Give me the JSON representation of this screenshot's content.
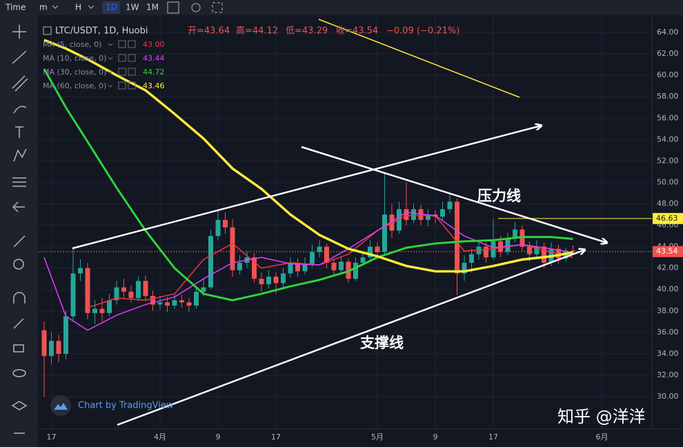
{
  "chart_data": {
    "type": "candlestick",
    "toolbar": [
      "Time",
      "m",
      "H",
      "1D",
      "1W",
      "1M"
    ],
    "symbol": "LTC/USDT, 1D, Huobi",
    "ohlc_text": [
      "开=43.64",
      "高=44.12",
      "低=43.29",
      "收=43.54"
    ],
    "change_text": "−0.09 (−0.21%)",
    "x": [
      "03-16",
      "03-17",
      "03-18",
      "03-19",
      "03-20",
      "03-21",
      "03-22",
      "03-23",
      "03-24",
      "03-25",
      "03-26",
      "03-27",
      "03-28",
      "03-29",
      "03-30",
      "03-31",
      "04-01",
      "04-02",
      "04-03",
      "04-04",
      "04-05",
      "04-06",
      "04-07",
      "04-08",
      "04-09",
      "04-10",
      "04-11",
      "04-12",
      "04-13",
      "04-14",
      "04-15",
      "04-16",
      "04-17",
      "04-18",
      "04-19",
      "04-20",
      "04-21",
      "04-22",
      "04-23",
      "04-24",
      "04-25",
      "04-26",
      "04-27",
      "04-28",
      "04-29",
      "04-30",
      "05-01",
      "05-02",
      "05-03",
      "05-04",
      "05-05",
      "05-06",
      "05-07",
      "05-08",
      "05-09",
      "05-10",
      "05-11",
      "05-12",
      "05-13",
      "05-14",
      "05-15",
      "05-16",
      "05-17",
      "05-18",
      "05-19",
      "05-20",
      "05-21",
      "05-22",
      "05-23",
      "05-24",
      "05-25",
      "05-26",
      "05-27",
      "05-28"
    ],
    "open": [
      36.2,
      33.8,
      35.2,
      34.0,
      37.5,
      41.5,
      42.0,
      37.8,
      38.2,
      37.8,
      39.0,
      40.2,
      39.8,
      39.2,
      40.8,
      39.4,
      38.6,
      38.8,
      38.5,
      39.0,
      38.8,
      38.5,
      39.8,
      40.2,
      45.0,
      46.5,
      45.8,
      41.8,
      42.5,
      43.0,
      41.0,
      40.5,
      41.2,
      40.6,
      41.5,
      42.5,
      41.7,
      42.4,
      43.5,
      44.0,
      42.5,
      41.8,
      42.6,
      41.0,
      42.5,
      43.0,
      44.0,
      43.5,
      47.0,
      45.5,
      47.5,
      46.5,
      47.5,
      46.5,
      47.0,
      46.8,
      47.5,
      48.2,
      41.5,
      42.5,
      43.3,
      44.0,
      43.0,
      44.5,
      43.5,
      44.8,
      45.6,
      44.0,
      43.3,
      44.0,
      42.5,
      43.8,
      42.9,
      43.64
    ],
    "high": [
      37.0,
      36.0,
      35.8,
      38.0,
      43.8,
      42.8,
      42.5,
      39.0,
      39.2,
      39.6,
      40.8,
      41.0,
      40.4,
      41.2,
      41.3,
      39.9,
      39.4,
      39.3,
      39.6,
      39.5,
      39.2,
      40.3,
      41.0,
      45.6,
      47.5,
      47.2,
      46.6,
      43.2,
      43.6,
      43.4,
      41.6,
      41.8,
      41.6,
      42.0,
      43.0,
      42.9,
      43.0,
      44.2,
      44.6,
      44.3,
      42.9,
      43.1,
      42.9,
      43.0,
      43.6,
      44.6,
      44.4,
      50.8,
      48.0,
      48.2,
      50.0,
      48.0,
      47.9,
      47.5,
      47.4,
      48.2,
      48.9,
      48.5,
      43.2,
      43.8,
      44.6,
      44.4,
      46.6,
      45.0,
      45.3,
      46.3,
      46.0,
      44.5,
      44.6,
      44.4,
      44.4,
      44.2,
      43.9,
      44.12
    ],
    "low": [
      30.0,
      33.0,
      33.2,
      33.5,
      37.0,
      40.8,
      37.2,
      36.8,
      37.0,
      37.5,
      38.6,
      39.2,
      38.8,
      38.9,
      39.0,
      38.0,
      38.1,
      37.9,
      38.2,
      38.3,
      37.9,
      38.2,
      39.4,
      40.0,
      44.6,
      45.2,
      41.2,
      41.4,
      42.0,
      40.6,
      39.8,
      40.1,
      39.6,
      40.2,
      41.1,
      41.2,
      41.4,
      42.1,
      43.0,
      42.0,
      41.3,
      41.5,
      40.6,
      40.8,
      42.2,
      42.8,
      43.0,
      43.2,
      44.8,
      45.2,
      46.0,
      46.2,
      46.0,
      45.9,
      46.2,
      46.5,
      47.1,
      39.5,
      40.8,
      41.6,
      42.8,
      42.5,
      42.8,
      43.0,
      43.2,
      44.4,
      43.6,
      42.6,
      43.0,
      42.0,
      42.2,
      42.4,
      42.6,
      43.29
    ],
    "close": [
      33.8,
      35.2,
      34.0,
      37.5,
      41.5,
      42.0,
      37.8,
      38.2,
      37.8,
      39.0,
      40.2,
      39.8,
      39.2,
      40.8,
      39.4,
      38.6,
      38.8,
      38.5,
      39.0,
      38.8,
      38.5,
      39.8,
      40.2,
      45.0,
      46.5,
      45.8,
      41.8,
      42.5,
      43.0,
      41.0,
      40.5,
      41.2,
      40.6,
      41.5,
      42.5,
      41.7,
      42.4,
      43.5,
      44.0,
      42.5,
      41.8,
      42.6,
      41.0,
      42.5,
      43.0,
      44.0,
      43.5,
      47.0,
      45.5,
      47.5,
      46.5,
      47.5,
      46.5,
      47.0,
      46.8,
      47.5,
      48.2,
      41.5,
      42.5,
      43.3,
      44.0,
      43.0,
      44.5,
      43.5,
      44.8,
      45.6,
      44.0,
      43.3,
      44.0,
      42.5,
      43.8,
      42.9,
      43.64,
      43.54
    ],
    "up_color": "#26a69a",
    "down_color": "#ef5350",
    "indicators": {
      "x": [
        "03-16",
        "03-19",
        "03-22",
        "03-26",
        "03-30",
        "04-03",
        "04-07",
        "04-11",
        "04-15",
        "04-19",
        "04-23",
        "04-27",
        "05-01",
        "05-05",
        "05-09",
        "05-13",
        "05-17",
        "05-21",
        "05-25",
        "05-28"
      ],
      "series": [
        {
          "name": "MA (5, close, 0)",
          "color": "#f23645",
          "width": 1.5,
          "last_label": "43.00",
          "values": [
            null,
            null,
            38.3,
            39.2,
            39.0,
            39.6,
            42.8,
            44.3,
            42.0,
            42.5,
            42.3,
            43.3,
            45.5,
            46.9,
            46.9,
            43.6,
            43.8,
            44.2,
            43.5,
            43.0
          ]
        },
        {
          "name": "MA (10, close, 0)",
          "color": "#e040fb",
          "width": 1.5,
          "last_label": "43.44",
          "values": [
            43.0,
            37.5,
            36.2,
            37.6,
            38.6,
            39.3,
            41.0,
            42.5,
            43.0,
            42.4,
            42.3,
            43.8,
            45.5,
            47.2,
            46.9,
            45.0,
            43.9,
            44.2,
            43.8,
            43.44
          ]
        },
        {
          "name": "MA (30, close, 0)",
          "color": "#2fd33b",
          "width": 3,
          "last_label": "44.72",
          "values": [
            60.6,
            57.0,
            53.8,
            49.5,
            45.5,
            42.0,
            39.6,
            39.0,
            39.6,
            40.3,
            40.9,
            41.7,
            43.0,
            43.9,
            44.3,
            44.5,
            44.6,
            44.9,
            44.9,
            44.72
          ]
        },
        {
          "name": "MA (60, close, 0)",
          "color": "#ffeb3b",
          "width": 3.5,
          "last_label": "43.46",
          "values": [
            63.3,
            62.5,
            61.5,
            60.0,
            58.6,
            56.4,
            54.1,
            51.3,
            49.4,
            47.0,
            45.1,
            43.8,
            43.1,
            42.2,
            41.7,
            41.7,
            42.2,
            42.8,
            43.1,
            43.46
          ]
        }
      ]
    },
    "ylim": [
      27.1,
      65.1
    ],
    "yticks": [
      {
        "value": 30,
        "label": "30.00"
      },
      {
        "value": 32,
        "label": "32.00"
      },
      {
        "value": 34,
        "label": "34.00"
      },
      {
        "value": 36,
        "label": "36.00"
      },
      {
        "value": 38,
        "label": "38.00"
      },
      {
        "value": 40,
        "label": "40.00"
      },
      {
        "value": 42,
        "label": "42.00"
      },
      {
        "value": 44,
        "label": "44.00"
      },
      {
        "value": 46,
        "label": "46.00"
      },
      {
        "value": 48,
        "label": "48.00"
      },
      {
        "value": 50,
        "label": "50.00"
      },
      {
        "value": 52,
        "label": "52.00"
      },
      {
        "value": 54,
        "label": "54.00"
      },
      {
        "value": 56,
        "label": "56.00"
      },
      {
        "value": 58,
        "label": "58.00"
      },
      {
        "value": 60,
        "label": "60.00"
      },
      {
        "value": 62,
        "label": "62.00"
      },
      {
        "value": 64,
        "label": "64.00"
      }
    ],
    "xticks": [
      {
        "value": "03-17",
        "label": "17"
      },
      {
        "value": "04-01",
        "label": "4月"
      },
      {
        "value": "04-09",
        "label": "9"
      },
      {
        "value": "04-17",
        "label": "17"
      },
      {
        "value": "05-01",
        "label": "5月"
      },
      {
        "value": "05-09",
        "label": "9"
      },
      {
        "value": "05-17",
        "label": "17"
      },
      {
        "value": "06-01",
        "label": "6月"
      }
    ],
    "grid": true,
    "price_labels": [
      {
        "value": 46.63,
        "color": "#ffeb3b",
        "text_color": "#131722"
      },
      {
        "value": 43.54,
        "color": "#ef5350",
        "text_color": "#ffffff"
      }
    ],
    "annotations": [
      "压力线",
      "支撑线"
    ],
    "watermarks": [
      "Chart by TradingView",
      "知乎 @洋洋"
    ]
  }
}
